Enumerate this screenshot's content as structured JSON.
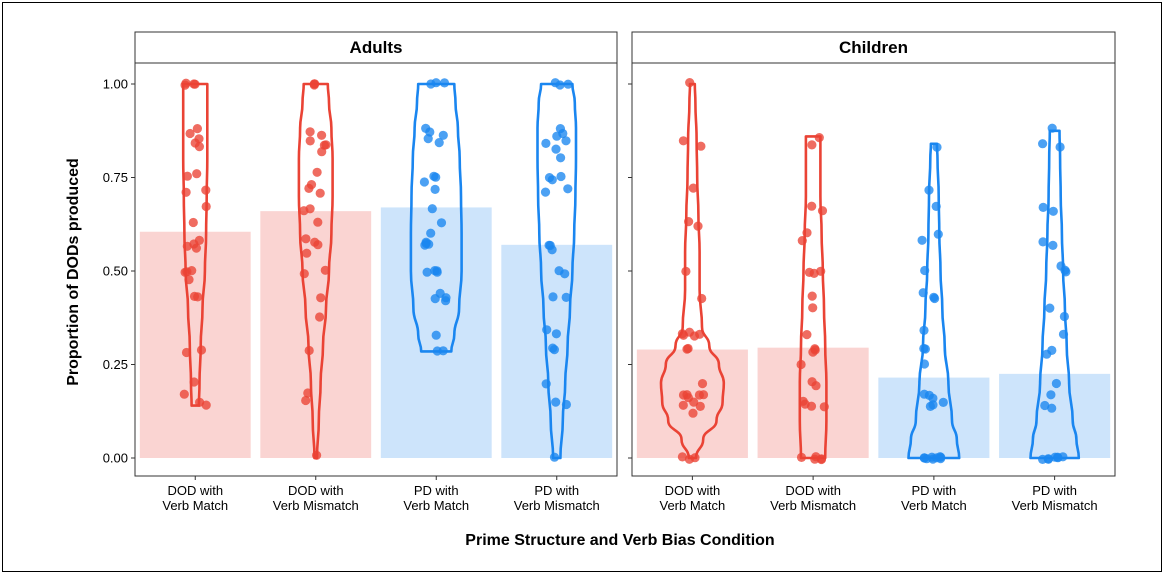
{
  "colors": {
    "dod": "#ea4335",
    "dod_fill": "#fad4d2",
    "pd": "#1a86f0",
    "pd_fill": "#cde4fb"
  },
  "chart_data": {
    "type": "bar",
    "xlabel": "Prime Structure and Verb Bias Condition",
    "ylabel": "Proportion of DODs produced",
    "ylim": [
      0,
      1
    ],
    "yticks": [
      "0.00",
      "0.25",
      "0.50",
      "0.75",
      "1.00"
    ],
    "grid": false,
    "panels": [
      {
        "title": "Adults",
        "conditions": [
          {
            "label_line1": "DOD with",
            "label_line2": "Verb Match",
            "structure": "DOD",
            "mean": 0.605,
            "violin": [
              [
                0.14,
                0.06
              ],
              [
                0.2,
                0.07
              ],
              [
                0.3,
                0.09
              ],
              [
                0.4,
                0.12
              ],
              [
                0.5,
                0.16
              ],
              [
                0.6,
                0.18
              ],
              [
                0.7,
                0.19
              ],
              [
                0.8,
                0.2
              ],
              [
                0.88,
                0.2
              ],
              [
                0.95,
                0.2
              ],
              [
                1.0,
                0.2
              ]
            ],
            "points": [
              1.0,
              1.0,
              1.0,
              1.0,
              0.88,
              0.87,
              0.85,
              0.84,
              0.83,
              0.76,
              0.75,
              0.72,
              0.71,
              0.67,
              0.63,
              0.58,
              0.57,
              0.57,
              0.56,
              0.5,
              0.5,
              0.5,
              0.48,
              0.43,
              0.43,
              0.29,
              0.28,
              0.2,
              0.17,
              0.15,
              0.14
            ]
          },
          {
            "label_line1": "DOD with",
            "label_line2": "Verb Mismatch",
            "structure": "DOD",
            "mean": 0.66,
            "violin": [
              [
                0.0,
                0.02
              ],
              [
                0.1,
                0.05
              ],
              [
                0.2,
                0.08
              ],
              [
                0.3,
                0.12
              ],
              [
                0.4,
                0.17
              ],
              [
                0.5,
                0.22
              ],
              [
                0.6,
                0.26
              ],
              [
                0.7,
                0.28
              ],
              [
                0.8,
                0.28
              ],
              [
                0.88,
                0.26
              ],
              [
                0.95,
                0.22
              ],
              [
                1.0,
                0.2
              ]
            ],
            "points": [
              1.0,
              1.0,
              1.0,
              0.87,
              0.86,
              0.85,
              0.84,
              0.84,
              0.82,
              0.76,
              0.73,
              0.72,
              0.71,
              0.67,
              0.66,
              0.63,
              0.59,
              0.58,
              0.57,
              0.55,
              0.5,
              0.49,
              0.43,
              0.38,
              0.29,
              0.17,
              0.15,
              0.01
            ]
          },
          {
            "label_line1": "PD with",
            "label_line2": "Verb Match",
            "structure": "PD",
            "mean": 0.67,
            "violin": [
              [
                0.285,
                0.25
              ],
              [
                0.33,
                0.3
              ],
              [
                0.4,
                0.38
              ],
              [
                0.5,
                0.42
              ],
              [
                0.6,
                0.42
              ],
              [
                0.7,
                0.41
              ],
              [
                0.8,
                0.39
              ],
              [
                0.88,
                0.36
              ],
              [
                0.95,
                0.32
              ],
              [
                1.0,
                0.3
              ]
            ],
            "points": [
              1.0,
              1.0,
              1.0,
              0.88,
              0.87,
              0.86,
              0.85,
              0.84,
              0.75,
              0.75,
              0.74,
              0.72,
              0.67,
              0.63,
              0.6,
              0.58,
              0.57,
              0.57,
              0.57,
              0.5,
              0.5,
              0.5,
              0.5,
              0.44,
              0.43,
              0.43,
              0.42,
              0.33,
              0.29,
              0.29
            ]
          },
          {
            "label_line1": "PD with",
            "label_line2": "Verb Mismatch",
            "structure": "PD",
            "mean": 0.57,
            "violin": [
              [
                0.0,
                0.06
              ],
              [
                0.1,
                0.1
              ],
              [
                0.2,
                0.14
              ],
              [
                0.3,
                0.18
              ],
              [
                0.4,
                0.22
              ],
              [
                0.5,
                0.26
              ],
              [
                0.6,
                0.29
              ],
              [
                0.7,
                0.31
              ],
              [
                0.8,
                0.32
              ],
              [
                0.88,
                0.32
              ],
              [
                0.95,
                0.3
              ],
              [
                1.0,
                0.26
              ]
            ],
            "points": [
              1.0,
              1.0,
              1.0,
              0.88,
              0.87,
              0.86,
              0.85,
              0.84,
              0.83,
              0.8,
              0.75,
              0.75,
              0.74,
              0.72,
              0.71,
              0.57,
              0.57,
              0.56,
              0.5,
              0.49,
              0.43,
              0.43,
              0.34,
              0.33,
              0.29,
              0.29,
              0.2,
              0.15,
              0.14,
              0.0
            ]
          }
        ]
      },
      {
        "title": "Children",
        "conditions": [
          {
            "label_line1": "DOD with",
            "label_line2": "Verb Match",
            "structure": "DOD",
            "mean": 0.29,
            "violin": [
              [
                0.0,
                0.06
              ],
              [
                0.05,
                0.18
              ],
              [
                0.1,
                0.4
              ],
              [
                0.15,
                0.5
              ],
              [
                0.2,
                0.52
              ],
              [
                0.25,
                0.44
              ],
              [
                0.3,
                0.28
              ],
              [
                0.35,
                0.16
              ],
              [
                0.45,
                0.12
              ],
              [
                0.55,
                0.12
              ],
              [
                0.65,
                0.1
              ],
              [
                0.75,
                0.08
              ],
              [
                0.85,
                0.07
              ],
              [
                0.95,
                0.05
              ],
              [
                1.0,
                0.04
              ]
            ],
            "points": [
              1.0,
              0.85,
              0.83,
              0.72,
              0.63,
              0.62,
              0.5,
              0.43,
              0.34,
              0.33,
              0.33,
              0.33,
              0.33,
              0.29,
              0.29,
              0.2,
              0.17,
              0.17,
              0.17,
              0.17,
              0.16,
              0.15,
              0.14,
              0.14,
              0.12,
              0.0,
              0.0,
              0.0
            ]
          },
          {
            "label_line1": "DOD with",
            "label_line2": "Verb Mismatch",
            "structure": "DOD",
            "mean": 0.295,
            "violin": [
              [
                0.0,
                0.2
              ],
              [
                0.1,
                0.22
              ],
              [
                0.2,
                0.22
              ],
              [
                0.3,
                0.2
              ],
              [
                0.4,
                0.18
              ],
              [
                0.5,
                0.16
              ],
              [
                0.6,
                0.14
              ],
              [
                0.7,
                0.12
              ],
              [
                0.8,
                0.12
              ],
              [
                0.86,
                0.12
              ]
            ],
            "points": [
              0.86,
              0.84,
              0.67,
              0.66,
              0.6,
              0.58,
              0.5,
              0.5,
              0.49,
              0.43,
              0.4,
              0.33,
              0.29,
              0.29,
              0.28,
              0.25,
              0.2,
              0.19,
              0.15,
              0.14,
              0.14,
              0.14,
              0.0,
              0.0,
              0.0,
              0.0,
              0.0
            ]
          },
          {
            "label_line1": "PD with",
            "label_line2": "Verb Match",
            "structure": "PD",
            "mean": 0.215,
            "violin": [
              [
                0.0,
                0.42
              ],
              [
                0.05,
                0.38
              ],
              [
                0.1,
                0.3
              ],
              [
                0.2,
                0.24
              ],
              [
                0.3,
                0.18
              ],
              [
                0.4,
                0.14
              ],
              [
                0.5,
                0.11
              ],
              [
                0.6,
                0.09
              ],
              [
                0.7,
                0.08
              ],
              [
                0.8,
                0.06
              ],
              [
                0.84,
                0.05
              ]
            ],
            "points": [
              0.83,
              0.72,
              0.67,
              0.6,
              0.58,
              0.5,
              0.44,
              0.43,
              0.43,
              0.34,
              0.29,
              0.29,
              0.25,
              0.17,
              0.17,
              0.16,
              0.15,
              0.14,
              0.14,
              0.0,
              0.0,
              0.0,
              0.0,
              0.0,
              0.0,
              0.0,
              0.0,
              0.0
            ]
          },
          {
            "label_line1": "PD with",
            "label_line2": "Verb Mismatch",
            "structure": "PD",
            "mean": 0.225,
            "violin": [
              [
                0.0,
                0.4
              ],
              [
                0.05,
                0.36
              ],
              [
                0.1,
                0.3
              ],
              [
                0.2,
                0.24
              ],
              [
                0.3,
                0.2
              ],
              [
                0.4,
                0.17
              ],
              [
                0.5,
                0.14
              ],
              [
                0.6,
                0.12
              ],
              [
                0.7,
                0.1
              ],
              [
                0.8,
                0.09
              ],
              [
                0.875,
                0.08
              ]
            ],
            "points": [
              0.88,
              0.84,
              0.83,
              0.67,
              0.66,
              0.58,
              0.57,
              0.51,
              0.5,
              0.5,
              0.4,
              0.38,
              0.33,
              0.29,
              0.28,
              0.2,
              0.17,
              0.14,
              0.13,
              0.0,
              0.0,
              0.0,
              0.0,
              0.0,
              0.0,
              0.0
            ]
          }
        ]
      }
    ]
  }
}
